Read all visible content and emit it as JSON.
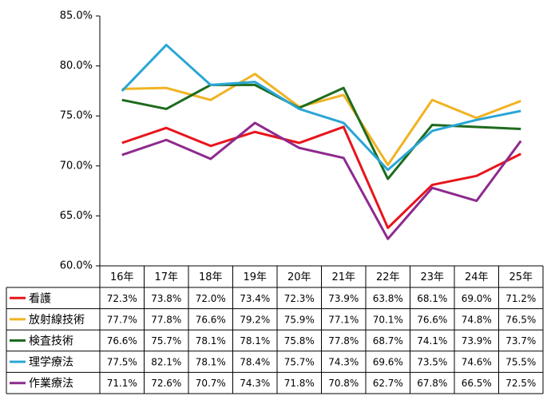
{
  "chart_data": {
    "type": "line",
    "categories": [
      "16年",
      "17年",
      "18年",
      "19年",
      "20年",
      "21年",
      "22年",
      "23年",
      "24年",
      "25年"
    ],
    "ylim": [
      60,
      85
    ],
    "yticks": [
      {
        "value": 60,
        "label": "60.0%"
      },
      {
        "value": 65,
        "label": "65.0%"
      },
      {
        "value": 70,
        "label": "70.0%"
      },
      {
        "value": 75,
        "label": "75.0%"
      },
      {
        "value": 80,
        "label": "80.0%"
      },
      {
        "value": 85,
        "label": "85.0%"
      }
    ],
    "grid": false,
    "series": [
      {
        "name": "看護",
        "color": "#e8141c",
        "values": [
          72.3,
          73.8,
          72.0,
          73.4,
          72.3,
          73.9,
          63.8,
          68.1,
          69.0,
          71.2
        ],
        "value_labels": [
          "72.3%",
          "73.8%",
          "72.0%",
          "73.4%",
          "72.3%",
          "73.9%",
          "63.8%",
          "68.1%",
          "69.0%",
          "71.2%"
        ]
      },
      {
        "name": "放射線技術",
        "color": "#f0b323",
        "values": [
          77.7,
          77.8,
          76.6,
          79.2,
          75.9,
          77.1,
          70.1,
          76.6,
          74.8,
          76.5
        ],
        "value_labels": [
          "77.7%",
          "77.8%",
          "76.6%",
          "79.2%",
          "75.9%",
          "77.1%",
          "70.1%",
          "76.6%",
          "74.8%",
          "76.5%"
        ]
      },
      {
        "name": "検査技術",
        "color": "#1e6b1e",
        "values": [
          76.6,
          75.7,
          78.1,
          78.1,
          75.8,
          77.8,
          68.7,
          74.1,
          73.9,
          73.7
        ],
        "value_labels": [
          "76.6%",
          "75.7%",
          "78.1%",
          "78.1%",
          "75.8%",
          "77.8%",
          "68.7%",
          "74.1%",
          "73.9%",
          "73.7%"
        ]
      },
      {
        "name": "理学療法",
        "color": "#2aa6d6",
        "values": [
          77.5,
          82.1,
          78.1,
          78.4,
          75.7,
          74.3,
          69.6,
          73.5,
          74.6,
          75.5
        ],
        "value_labels": [
          "77.5%",
          "82.1%",
          "78.1%",
          "78.4%",
          "75.7%",
          "74.3%",
          "69.6%",
          "73.5%",
          "74.6%",
          "75.5%"
        ]
      },
      {
        "name": "作業療法",
        "color": "#8e2a8e",
        "values": [
          71.1,
          72.6,
          70.7,
          74.3,
          71.8,
          70.8,
          62.7,
          67.8,
          66.5,
          72.5
        ],
        "value_labels": [
          "71.1%",
          "72.6%",
          "70.7%",
          "74.3%",
          "71.8%",
          "70.8%",
          "62.7%",
          "67.8%",
          "66.5%",
          "72.5%"
        ]
      }
    ]
  }
}
